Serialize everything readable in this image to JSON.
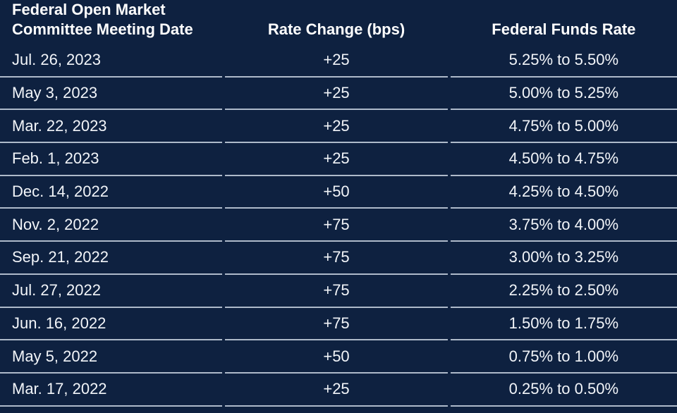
{
  "colors": {
    "background": "#0E2140",
    "divider": "#AEBACA",
    "header_text": "#FFFFFF",
    "body_text": "#F2F5F9"
  },
  "header": {
    "col1_line1": "Federal Open Market",
    "col1_line2": "Committee Meeting Date"
  },
  "chart_data": {
    "type": "table",
    "columns": [
      "Federal Open Market Committee Meeting Date",
      "Rate Change (bps)",
      "Federal Funds Rate"
    ],
    "rows": [
      [
        "Jul. 26, 2023",
        "+25",
        "5.25% to 5.50%"
      ],
      [
        "May 3, 2023",
        "+25",
        "5.00% to 5.25%"
      ],
      [
        "Mar. 22, 2023",
        "+25",
        "4.75% to 5.00%"
      ],
      [
        "Feb. 1, 2023",
        "+25",
        "4.50% to 4.75%"
      ],
      [
        "Dec. 14, 2022",
        "+50",
        "4.25% to 4.50%"
      ],
      [
        "Nov. 2, 2022",
        "+75",
        "3.75% to 4.00%"
      ],
      [
        "Sep. 21, 2022",
        "+75",
        "3.00% to 3.25%"
      ],
      [
        "Jul. 27, 2022",
        "+75",
        "2.25% to 2.50%"
      ],
      [
        "Jun. 16, 2022",
        "+75",
        "1.50% to 1.75%"
      ],
      [
        "May 5, 2022",
        "+50",
        "0.75% to 1.00%"
      ],
      [
        "Mar. 17, 2022",
        "+25",
        "0.25% to 0.50%"
      ]
    ]
  }
}
